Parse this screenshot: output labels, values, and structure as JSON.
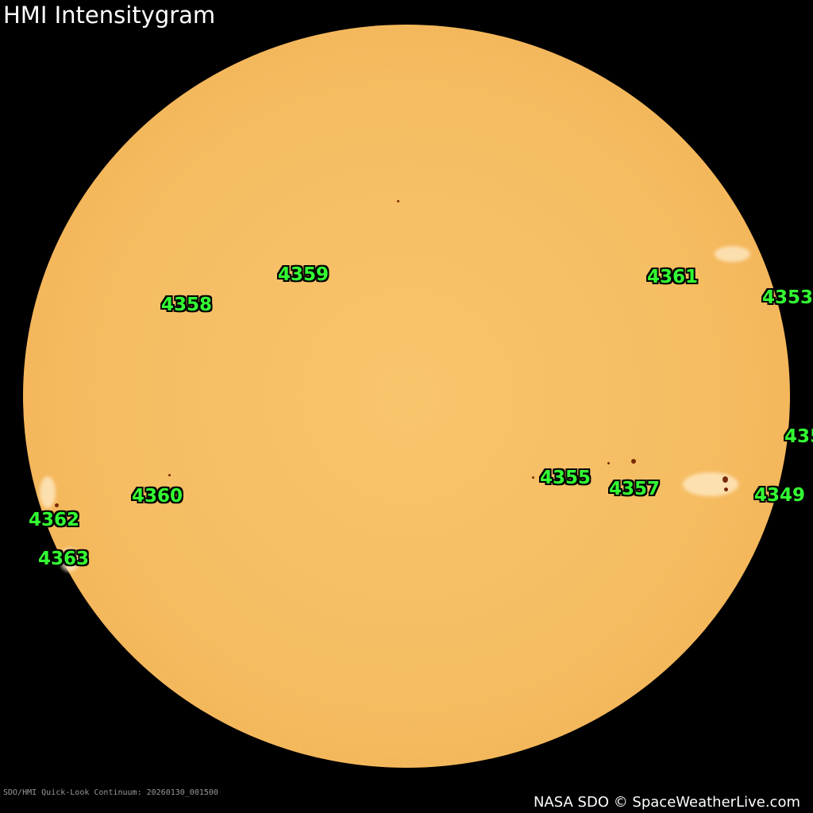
{
  "title": "HMI Intensitygram",
  "colors": {
    "disk": "#f6bd62",
    "label": "#33ff33",
    "background": "#000000"
  },
  "regions": [
    {
      "id": "4359"
    },
    {
      "id": "4358"
    },
    {
      "id": "4361"
    },
    {
      "id": "4353"
    },
    {
      "id": "435"
    },
    {
      "id": "4355"
    },
    {
      "id": "4357"
    },
    {
      "id": "4349"
    },
    {
      "id": "4360"
    },
    {
      "id": "4362"
    },
    {
      "id": "4363"
    }
  ],
  "footer": {
    "caption": "SDO/HMI Quick-Look Continuum: 20260130_001500",
    "credit": "NASA SDO © SpaceWeatherLive.com"
  }
}
